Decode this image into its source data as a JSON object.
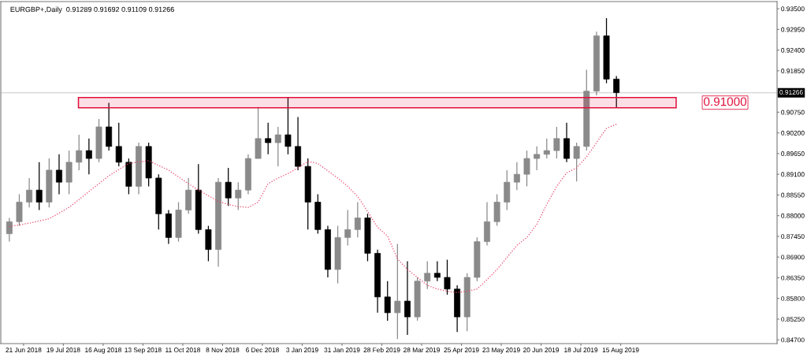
{
  "chart_data": {
    "type": "candlestick",
    "title": "EURGBP+,Daily  0.91289 0.91692 0.91109 0.91266",
    "x": [
      "2018-06-11",
      "2018-06-18",
      "2018-06-25",
      "2018-07-02",
      "2018-07-09",
      "2018-07-16",
      "2018-07-23",
      "2018-07-30",
      "2018-08-06",
      "2018-08-13",
      "2018-08-20",
      "2018-08-27",
      "2018-09-03",
      "2018-09-10",
      "2018-09-17",
      "2018-09-24",
      "2018-10-01",
      "2018-10-08",
      "2018-10-15",
      "2018-10-22",
      "2018-10-29",
      "2018-11-05",
      "2018-11-12",
      "2018-11-19",
      "2018-11-26",
      "2018-12-03",
      "2018-12-10",
      "2018-12-17",
      "2018-12-24",
      "2018-12-31",
      "2019-01-07",
      "2019-01-14",
      "2019-01-21",
      "2019-01-28",
      "2019-02-04",
      "2019-02-11",
      "2019-02-18",
      "2019-02-25",
      "2019-03-04",
      "2019-03-11",
      "2019-03-18",
      "2019-03-25",
      "2019-04-01",
      "2019-04-08",
      "2019-04-15",
      "2019-04-22",
      "2019-04-29",
      "2019-05-06",
      "2019-05-13",
      "2019-05-20",
      "2019-05-27",
      "2019-06-03",
      "2019-06-10",
      "2019-06-17",
      "2019-06-24",
      "2019-07-01",
      "2019-07-08",
      "2019-07-15",
      "2019-07-22",
      "2019-07-29",
      "2019-08-05",
      "2019-08-12"
    ],
    "ohlc": [
      [
        0.8752,
        0.8794,
        0.8731,
        0.8784
      ],
      [
        0.8784,
        0.8857,
        0.8773,
        0.8836
      ],
      [
        0.8836,
        0.89,
        0.8822,
        0.8868
      ],
      [
        0.8868,
        0.8942,
        0.8815,
        0.8836
      ],
      [
        0.8836,
        0.8952,
        0.8822,
        0.8921
      ],
      [
        0.8921,
        0.8963,
        0.8857,
        0.8889
      ],
      [
        0.8889,
        0.8973,
        0.8857,
        0.8942
      ],
      [
        0.8942,
        0.9015,
        0.8921,
        0.8973
      ],
      [
        0.8973,
        0.9005,
        0.891,
        0.8952
      ],
      [
        0.8952,
        0.9057,
        0.8942,
        0.9036
      ],
      [
        0.9036,
        0.91,
        0.8973,
        0.8984
      ],
      [
        0.8984,
        0.9047,
        0.8931,
        0.8942
      ],
      [
        0.8942,
        0.8952,
        0.8857,
        0.8878
      ],
      [
        0.8878,
        0.8994,
        0.8857,
        0.8984
      ],
      [
        0.8984,
        0.8994,
        0.8878,
        0.89
      ],
      [
        0.89,
        0.891,
        0.8763,
        0.8805
      ],
      [
        0.8805,
        0.8815,
        0.8725,
        0.8742
      ],
      [
        0.8742,
        0.8836,
        0.8731,
        0.8815
      ],
      [
        0.8815,
        0.89,
        0.8805,
        0.8868
      ],
      [
        0.8868,
        0.8937,
        0.8752,
        0.8763
      ],
      [
        0.8763,
        0.8773,
        0.8679,
        0.871
      ],
      [
        0.871,
        0.89,
        0.8664,
        0.8889
      ],
      [
        0.8889,
        0.8927,
        0.8826,
        0.8847
      ],
      [
        0.8847,
        0.8889,
        0.8815,
        0.8868
      ],
      [
        0.8868,
        0.8963,
        0.8857,
        0.8952
      ],
      [
        0.8952,
        0.9089,
        0.8952,
        0.9005
      ],
      [
        0.9005,
        0.9047,
        0.8963,
        0.8994
      ],
      [
        0.8994,
        0.9036,
        0.8931,
        0.9015
      ],
      [
        0.9015,
        0.9114,
        0.8963,
        0.8984
      ],
      [
        0.8984,
        0.9062,
        0.8921,
        0.8931
      ],
      [
        0.8931,
        0.8952,
        0.8763,
        0.8836
      ],
      [
        0.8836,
        0.8857,
        0.8752,
        0.8763
      ],
      [
        0.8763,
        0.8773,
        0.8636,
        0.8657
      ],
      [
        0.8657,
        0.8773,
        0.862,
        0.8742
      ],
      [
        0.8742,
        0.8815,
        0.8721,
        0.8763
      ],
      [
        0.8763,
        0.8836,
        0.8742,
        0.8794
      ],
      [
        0.8794,
        0.8805,
        0.8679,
        0.87
      ],
      [
        0.87,
        0.871,
        0.8542,
        0.8584
      ],
      [
        0.8584,
        0.8626,
        0.8521,
        0.8542
      ],
      [
        0.8542,
        0.8725,
        0.8472,
        0.8573
      ],
      [
        0.8573,
        0.8679,
        0.8483,
        0.8531
      ],
      [
        0.8531,
        0.8636,
        0.8521,
        0.8626
      ],
      [
        0.8626,
        0.8679,
        0.8605,
        0.8647
      ],
      [
        0.8647,
        0.8679,
        0.8626,
        0.8636
      ],
      [
        0.8636,
        0.8683,
        0.859,
        0.8605
      ],
      [
        0.8605,
        0.8615,
        0.8491,
        0.8531
      ],
      [
        0.8531,
        0.8647,
        0.8493,
        0.8636
      ],
      [
        0.8636,
        0.8742,
        0.8626,
        0.8731
      ],
      [
        0.8731,
        0.8836,
        0.8721,
        0.8784
      ],
      [
        0.8784,
        0.8857,
        0.8773,
        0.8836
      ],
      [
        0.8836,
        0.8921,
        0.8815,
        0.8889
      ],
      [
        0.8889,
        0.8942,
        0.8868,
        0.891
      ],
      [
        0.891,
        0.8973,
        0.8878,
        0.8952
      ],
      [
        0.8952,
        0.8984,
        0.8921,
        0.8963
      ],
      [
        0.8963,
        0.9005,
        0.8952,
        0.8973
      ],
      [
        0.8973,
        0.9036,
        0.8952,
        0.9005
      ],
      [
        0.9005,
        0.9047,
        0.8942,
        0.8952
      ],
      [
        0.8952,
        0.8994,
        0.8891,
        0.8984
      ],
      [
        0.8984,
        0.9188,
        0.8973,
        0.9131
      ],
      [
        0.9131,
        0.9289,
        0.912,
        0.9278
      ],
      [
        0.9278,
        0.9325,
        0.9152,
        0.9163
      ],
      [
        0.9163,
        0.9171,
        0.9087,
        0.9127
      ]
    ],
    "series": [
      {
        "type": "line",
        "color": "#e8456a",
        "line_style": "dotted",
        "x": [
          "2018-06-11",
          "2018-06-25",
          "2018-07-09",
          "2018-07-23",
          "2018-08-06",
          "2018-08-20",
          "2018-09-03",
          "2018-09-17",
          "2018-10-01",
          "2018-10-15",
          "2018-10-22",
          "2018-10-29",
          "2018-11-05",
          "2018-11-12",
          "2018-11-19",
          "2018-11-26",
          "2018-12-03",
          "2018-12-10",
          "2018-12-17",
          "2018-12-24",
          "2018-12-31",
          "2019-01-07",
          "2019-01-14",
          "2019-01-21",
          "2019-01-28",
          "2019-02-04",
          "2019-02-11",
          "2019-02-18",
          "2019-02-25",
          "2019-03-04",
          "2019-03-11",
          "2019-03-18",
          "2019-03-25",
          "2019-04-01",
          "2019-04-08",
          "2019-04-15",
          "2019-04-22",
          "2019-04-29",
          "2019-05-06",
          "2019-05-13",
          "2019-05-20",
          "2019-05-27",
          "2019-06-03",
          "2019-06-10",
          "2019-06-17",
          "2019-06-24",
          "2019-07-01",
          "2019-07-08",
          "2019-07-15",
          "2019-07-22",
          "2019-07-29",
          "2019-08-05",
          "2019-08-12"
        ],
        "values": [
          0.8771,
          0.878,
          0.8792,
          0.8822,
          0.8864,
          0.8906,
          0.8939,
          0.8946,
          0.8921,
          0.8885,
          0.8868,
          0.8853,
          0.8838,
          0.883,
          0.8824,
          0.8822,
          0.8836,
          0.8885,
          0.89,
          0.8912,
          0.8927,
          0.8944,
          0.8939,
          0.8919,
          0.89,
          0.8878,
          0.8851,
          0.8811,
          0.8769,
          0.8746,
          0.8685,
          0.8657,
          0.8636,
          0.8615,
          0.8605,
          0.8599,
          0.8596,
          0.8599,
          0.8605,
          0.863,
          0.8657,
          0.8689,
          0.8721,
          0.8742,
          0.8777,
          0.883,
          0.8878,
          0.8914,
          0.8927,
          0.8956,
          0.8994,
          0.9032,
          0.9043
        ]
      }
    ],
    "xlim": [
      "2018-06-05",
      "2019-12-03"
    ],
    "xticks": [
      {
        "value": "2018-06-21",
        "label": "21 Jun 2018"
      },
      {
        "value": "2018-07-19",
        "label": "19 Jul 2018"
      },
      {
        "value": "2018-08-16",
        "label": "16 Aug 2018"
      },
      {
        "value": "2018-09-13",
        "label": "13 Sep 2018"
      },
      {
        "value": "2018-10-11",
        "label": "11 Oct 2018"
      },
      {
        "value": "2018-11-08",
        "label": "8 Nov 2018"
      },
      {
        "value": "2018-12-06",
        "label": "6 Dec 2018"
      },
      {
        "value": "2019-01-03",
        "label": "3 Jan 2019"
      },
      {
        "value": "2019-01-31",
        "label": "31 Jan 2019"
      },
      {
        "value": "2019-02-28",
        "label": "28 Feb 2019"
      },
      {
        "value": "2019-03-28",
        "label": "28 Mar 2019"
      },
      {
        "value": "2019-04-25",
        "label": "25 Apr 2019"
      },
      {
        "value": "2019-05-23",
        "label": "23 May 2019"
      },
      {
        "value": "2019-06-20",
        "label": "20 Jun 2019"
      },
      {
        "value": "2019-07-18",
        "label": "18 Jul 2019"
      },
      {
        "value": "2019-08-15",
        "label": "15 Aug 2019"
      }
    ],
    "ylim": [
      0.846,
      0.9369
    ],
    "yticks": [
      {
        "value": 0.847,
        "label": "0.84700"
      },
      {
        "value": 0.8525,
        "label": "0.85250"
      },
      {
        "value": 0.858,
        "label": "0.85800"
      },
      {
        "value": 0.8635,
        "label": "0.86350"
      },
      {
        "value": 0.869,
        "label": "0.86900"
      },
      {
        "value": 0.8745,
        "label": "0.87450"
      },
      {
        "value": 0.88,
        "label": "0.88000"
      },
      {
        "value": 0.8855,
        "label": "0.88550"
      },
      {
        "value": 0.891,
        "label": "0.89100"
      },
      {
        "value": 0.8965,
        "label": "0.89650"
      },
      {
        "value": 0.902,
        "label": "0.90200"
      },
      {
        "value": 0.9075,
        "label": "0.90750"
      },
      {
        "value": 0.9185,
        "label": "0.91850"
      },
      {
        "value": 0.924,
        "label": "0.92400"
      },
      {
        "value": 0.9295,
        "label": "0.92950"
      },
      {
        "value": 0.935,
        "label": "0.93500"
      }
    ],
    "ref_lines": [
      {
        "axis": "y",
        "value": 0.91266,
        "label": "0.91266",
        "color": "#c8c8c8"
      }
    ],
    "bands": [
      {
        "axis": "y",
        "from": 0.9087,
        "to": 0.9114,
        "label": "0.91000",
        "color": "#e0103c"
      }
    ],
    "grid": false,
    "legend": false
  }
}
